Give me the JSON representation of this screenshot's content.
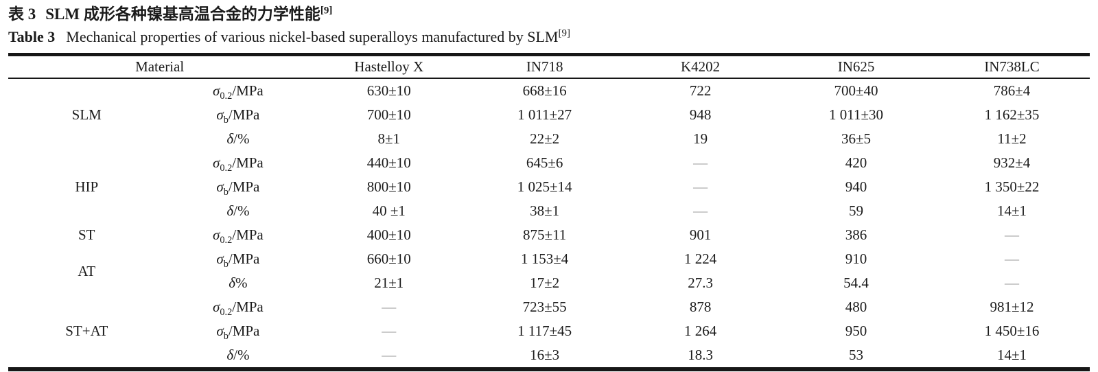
{
  "page": {
    "background": "#ffffff",
    "text_color": "#1b1b1b",
    "dash_color": "#9a9a9a",
    "rule_color": "#171717"
  },
  "titles": {
    "zh_label": "表 3",
    "zh_text": "SLM 成形各种镍基高温合金的力学性能",
    "zh_ref": "[9]",
    "en_label": "Table 3",
    "en_text": "Mechanical properties of various nickel-based superalloys manufactured by SLM",
    "en_ref": "[9]"
  },
  "table": {
    "header": {
      "material": "Material",
      "alloys": [
        "Hastelloy X",
        "IN718",
        "K4202",
        "IN625",
        "IN738LC"
      ]
    },
    "rows": [
      {
        "group": "SLM",
        "group_rowspan": 3,
        "property": {
          "base": "σ",
          "sub": "0.2",
          "rest": "/MPa"
        },
        "values": [
          "630±10",
          "668±16",
          "722",
          "700±40",
          "786±4"
        ]
      },
      {
        "property": {
          "base": "σ",
          "sub": "b",
          "rest": "/MPa"
        },
        "values": [
          "700±10",
          "1 011±27",
          "948",
          "1 011±30",
          "1 162±35"
        ]
      },
      {
        "property": {
          "base": "δ",
          "sub": "",
          "rest": "/%"
        },
        "values": [
          "8±1",
          "22±2",
          "19",
          "36±5",
          "11±2"
        ]
      },
      {
        "group": "HIP",
        "group_rowspan": 3,
        "property": {
          "base": "σ",
          "sub": "0.2",
          "rest": "/MPa"
        },
        "values": [
          "440±10",
          "645±6",
          "—",
          "420",
          "932±4"
        ]
      },
      {
        "property": {
          "base": "σ",
          "sub": "b",
          "rest": "/MPa"
        },
        "values": [
          "800±10",
          "1 025±14",
          "—",
          "940",
          "1 350±22"
        ]
      },
      {
        "property": {
          "base": "δ",
          "sub": "",
          "rest": "/%"
        },
        "values": [
          "40 ±1",
          "38±1",
          "—",
          "59",
          "14±1"
        ]
      },
      {
        "group": "ST",
        "group_rowspan": 1,
        "property": {
          "base": "σ",
          "sub": "0.2",
          "rest": "/MPa"
        },
        "values": [
          "400±10",
          "875±11",
          "901",
          "386",
          "—"
        ]
      },
      {
        "group": "AT",
        "group_rowspan": 2,
        "property": {
          "base": "σ",
          "sub": "b",
          "rest": "/MPa"
        },
        "values": [
          "660±10",
          "1 153±4",
          "1 224",
          "910",
          "—"
        ]
      },
      {
        "property": {
          "base": "δ",
          "sub": "",
          "rest": "%"
        },
        "values": [
          "21±1",
          "17±2",
          "27.3",
          "54.4",
          "—"
        ]
      },
      {
        "group": "ST+AT",
        "group_rowspan": 3,
        "property": {
          "base": "σ",
          "sub": "0.2",
          "rest": "/MPa"
        },
        "values": [
          "—",
          "723±55",
          "878",
          "480",
          "981±12"
        ]
      },
      {
        "property": {
          "base": "σ",
          "sub": "b",
          "rest": "/MPa"
        },
        "values": [
          "—",
          "1 117±45",
          "1 264",
          "950",
          "1 450±16"
        ]
      },
      {
        "property": {
          "base": "δ",
          "sub": "",
          "rest": "/%"
        },
        "values": [
          "—",
          "16±3",
          "18.3",
          "53",
          "14±1"
        ]
      }
    ]
  }
}
